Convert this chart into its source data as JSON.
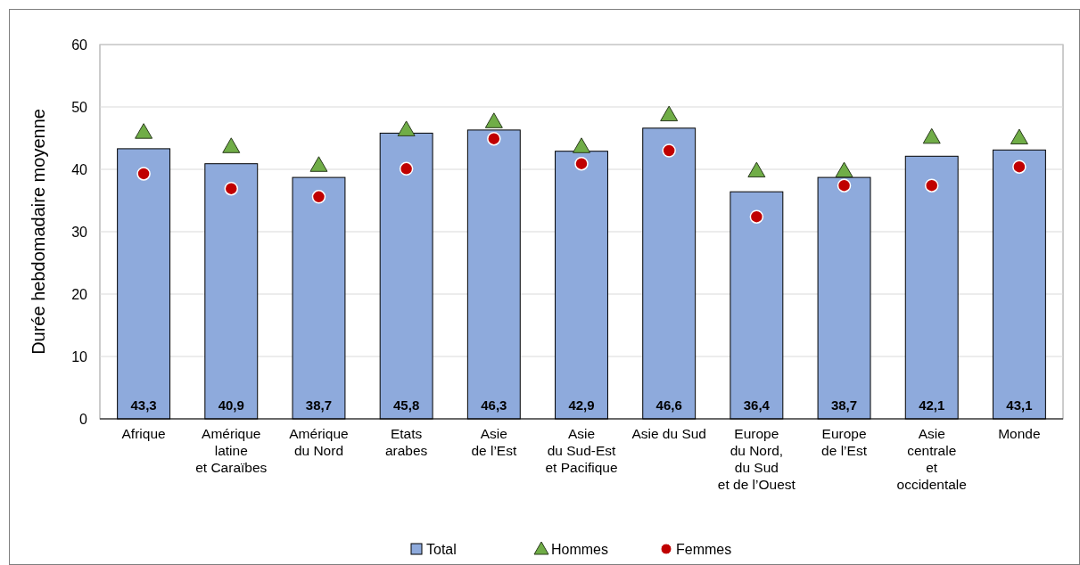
{
  "chart_data": {
    "type": "bar",
    "ylabel": "Durée hebdomadaire moyenne",
    "categories": [
      "Afrique",
      "Amérique\nlatine\net Caraïbes",
      "Amérique\ndu Nord",
      "Etats\narabes",
      "Asie\nde l’Est",
      "Asie\ndu Sud-Est\net Pacifique",
      "Asie du Sud",
      "Europe\ndu Nord,\ndu Sud\net de l’Ouest",
      "Europe\nde l’Est",
      "Asie\ncentrale\net\noccidentale",
      "Monde"
    ],
    "series": [
      {
        "name": "Total",
        "color": "#8eaadc",
        "values": [
          43.3,
          40.9,
          38.7,
          45.8,
          46.3,
          42.9,
          46.6,
          36.4,
          38.7,
          42.1,
          43.1
        ],
        "value_labels": [
          "43,3",
          "40,9",
          "38,7",
          "45,8",
          "46,3",
          "42,9",
          "46,6",
          "36,4",
          "38,7",
          "42,1",
          "43,1"
        ]
      },
      {
        "name": "Hommes",
        "type": "scatter",
        "marker": "triangle",
        "color": "#70ad47",
        "x": [
          "Afrique",
          "Amérique\nlatine\net Caraïbes",
          "Amérique\ndu Nord",
          "Etats\narabes",
          "Asie\nde l’Est",
          "Asie\ndu Sud-Est\net Pacifique",
          "Asie du Sud",
          "Europe\ndu Nord,\ndu Sud\net de l’Ouest",
          "Europe\nde l’Est",
          "Asie\ncentrale\net\noccidentale",
          "Monde"
        ],
        "values": [
          45.9,
          43.6,
          40.6,
          46.3,
          47.6,
          43.6,
          48.7,
          39.7,
          39.7,
          45.1,
          45.0
        ]
      },
      {
        "name": "Femmes",
        "type": "scatter",
        "marker": "circle",
        "color": "#c00000",
        "x": [
          "Afrique",
          "Amérique\nlatine\net Caraïbes",
          "Amérique\ndu Nord",
          "Etats\narabes",
          "Asie\nde l’Est",
          "Asie\ndu Sud-Est\net Pacifique",
          "Asie du Sud",
          "Europe\ndu Nord,\ndu Sud\net de l’Ouest",
          "Europe\nde l’Est",
          "Asie\ncentrale\net\noccidentale",
          "Monde"
        ],
        "values": [
          39.3,
          36.9,
          35.6,
          40.1,
          44.9,
          40.9,
          43.0,
          32.4,
          37.4,
          37.4,
          40.4
        ]
      }
    ],
    "ylim": [
      0,
      60
    ],
    "yticks": [
      0,
      10,
      20,
      30,
      40,
      50,
      60
    ],
    "grid": "y",
    "legend": "bottom"
  }
}
